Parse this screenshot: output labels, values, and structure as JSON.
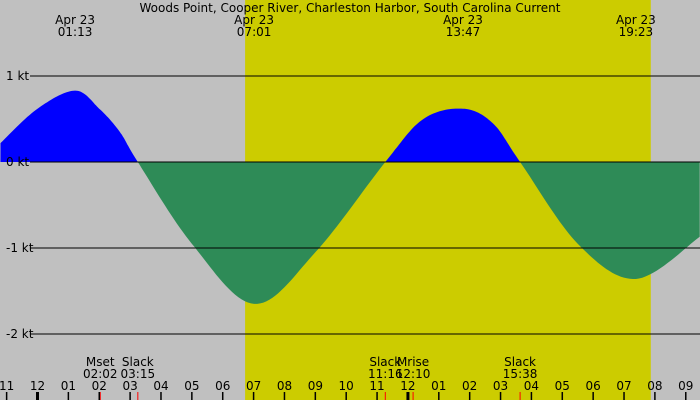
{
  "chart_data": {
    "type": "area",
    "title": "Woods Point, Cooper River, Charleston Harbor, South Carolina Current",
    "colors": {
      "background": "#c0c0c0",
      "daylight": "#cccc00",
      "flood": "#0000ff",
      "ebb": "#2e8b57",
      "event_tick": "#ff0000"
    },
    "daylight": {
      "start": "07:01",
      "end": "19:52"
    },
    "y_axis": {
      "unit": "kt",
      "ticks": [
        {
          "value": 1,
          "label": "1 kt"
        },
        {
          "value": 0,
          "label": "0 kt"
        },
        {
          "value": -1,
          "label": "-1 kt"
        },
        {
          "value": -2,
          "label": "-2 kt"
        }
      ],
      "range": [
        -2.3,
        1.85
      ]
    },
    "x_axis": {
      "range": [
        "Apr 22 22:48",
        "Apr 23 21:27"
      ],
      "hour_labels": [
        {
          "time": "Apr 22 23:00",
          "label": "11"
        },
        {
          "time": "Apr 23 00:00",
          "label": "12"
        },
        {
          "time": "Apr 23 01:00",
          "label": "01"
        },
        {
          "time": "Apr 23 02:00",
          "label": "02"
        },
        {
          "time": "Apr 23 03:00",
          "label": "03"
        },
        {
          "time": "Apr 23 04:00",
          "label": "04"
        },
        {
          "time": "Apr 23 05:00",
          "label": "05"
        },
        {
          "time": "Apr 23 06:00",
          "label": "06"
        },
        {
          "time": "Apr 23 07:00",
          "label": "07"
        },
        {
          "time": "Apr 23 08:00",
          "label": "08"
        },
        {
          "time": "Apr 23 09:00",
          "label": "09"
        },
        {
          "time": "Apr 23 10:00",
          "label": "10"
        },
        {
          "time": "Apr 23 11:00",
          "label": "11"
        },
        {
          "time": "Apr 23 12:00",
          "label": "12"
        },
        {
          "time": "Apr 23 13:00",
          "label": "01"
        },
        {
          "time": "Apr 23 14:00",
          "label": "02"
        },
        {
          "time": "Apr 23 15:00",
          "label": "03"
        },
        {
          "time": "Apr 23 16:00",
          "label": "04"
        },
        {
          "time": "Apr 23 17:00",
          "label": "05"
        },
        {
          "time": "Apr 23 18:00",
          "label": "06"
        },
        {
          "time": "Apr 23 19:00",
          "label": "07"
        },
        {
          "time": "Apr 23 20:00",
          "label": "08"
        },
        {
          "time": "Apr 23 21:00",
          "label": "09"
        }
      ]
    },
    "extrema_labels": [
      {
        "time": "Apr 23 01:13",
        "date": "Apr 23",
        "clock": "01:13",
        "value": 0.83
      },
      {
        "time": "Apr 23 07:01",
        "date": "Apr 23",
        "clock": "07:01",
        "value": -1.65
      },
      {
        "time": "Apr 23 13:47",
        "date": "Apr 23",
        "clock": "13:47",
        "value": 0.62
      },
      {
        "time": "Apr 23 19:23",
        "date": "Apr 23",
        "clock": "19:23",
        "value": -1.36
      }
    ],
    "events": [
      {
        "time": "Apr 23 02:02",
        "name": "Mset",
        "clock": "02:02"
      },
      {
        "time": "Apr 23 03:15",
        "name": "Slack",
        "clock": "03:15"
      },
      {
        "time": "Apr 23 11:16",
        "name": "Slack",
        "clock": "11:16"
      },
      {
        "time": "Apr 23 12:10",
        "name": "Mrise",
        "clock": "12:10"
      },
      {
        "time": "Apr 23 15:38",
        "name": "Slack",
        "clock": "15:38"
      }
    ],
    "series": [
      {
        "points": [
          [
            "Apr 22 22:48",
            0.22
          ],
          [
            "Apr 23 00:00",
            0.62
          ],
          [
            "Apr 23 01:13",
            0.83
          ],
          [
            "Apr 23 02:00",
            0.62
          ],
          [
            "Apr 23 02:40",
            0.35
          ],
          [
            "Apr 23 03:15",
            0
          ],
          [
            "Apr 23 05:00",
            -0.95
          ],
          [
            "Apr 23 07:01",
            -1.65
          ],
          [
            "Apr 23 09:00",
            -1.05
          ],
          [
            "Apr 23 11:16",
            0
          ],
          [
            "Apr 23 12:30",
            0.5
          ],
          [
            "Apr 23 13:47",
            0.62
          ],
          [
            "Apr 23 14:45",
            0.45
          ],
          [
            "Apr 23 15:38",
            0
          ],
          [
            "Apr 23 17:30",
            -0.95
          ],
          [
            "Apr 23 19:23",
            -1.36
          ],
          [
            "Apr 23 21:27",
            -0.87
          ]
        ]
      }
    ]
  }
}
